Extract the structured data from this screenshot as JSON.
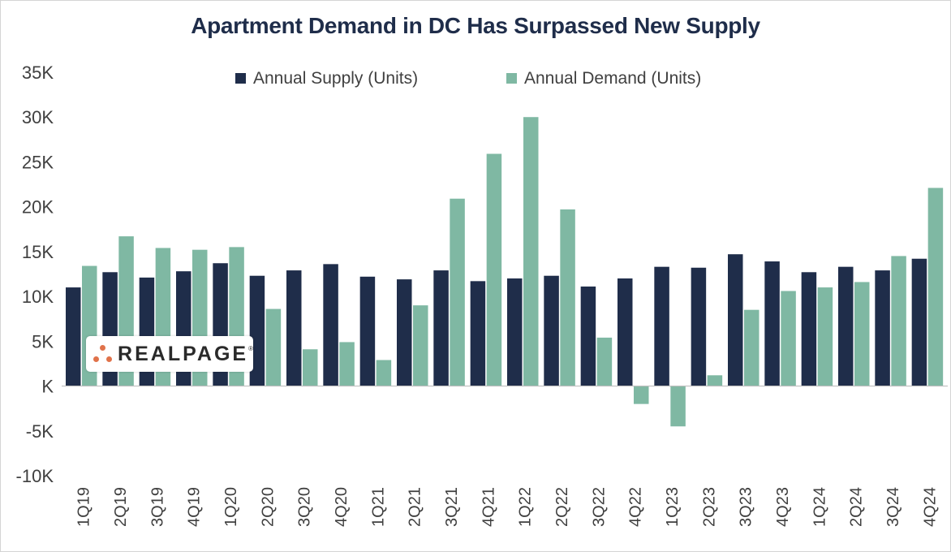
{
  "chart_data": {
    "type": "bar",
    "title": "Apartment Demand in DC Has Surpassed New Supply",
    "xlabel": "",
    "ylabel": "",
    "ylim": [
      -10000,
      35000
    ],
    "yticks": [
      35000,
      30000,
      25000,
      20000,
      15000,
      10000,
      5000,
      0,
      -5000,
      -10000
    ],
    "ytick_labels": [
      "35K",
      "30K",
      "25K",
      "20K",
      "15K",
      "10K",
      "5K",
      "K",
      "-5K",
      "-10K"
    ],
    "legend_position": "top-center",
    "grid": false,
    "categories": [
      "1Q19",
      "2Q19",
      "3Q19",
      "4Q19",
      "1Q20",
      "2Q20",
      "3Q20",
      "4Q20",
      "1Q21",
      "2Q21",
      "3Q21",
      "4Q21",
      "1Q22",
      "2Q22",
      "3Q22",
      "4Q22",
      "1Q23",
      "2Q23",
      "3Q23",
      "4Q23",
      "1Q24",
      "2Q24",
      "3Q24",
      "4Q24"
    ],
    "series": [
      {
        "name": "Annual Supply (Units)",
        "color": "#1f2d4a",
        "values": [
          11000,
          12700,
          12100,
          12800,
          13700,
          12300,
          12900,
          13600,
          12200,
          11900,
          12900,
          11700,
          12000,
          12300,
          11100,
          12000,
          13300,
          13200,
          14700,
          13900,
          12700,
          13300,
          12900,
          14200
        ]
      },
      {
        "name": "Annual Demand (Units)",
        "color": "#7fb8a3",
        "values": [
          13400,
          16700,
          15400,
          15200,
          15500,
          8600,
          4100,
          4900,
          2900,
          9000,
          20900,
          25900,
          30000,
          19700,
          5400,
          -2000,
          -4500,
          1200,
          8500,
          10600,
          11000,
          11600,
          14500,
          22100
        ]
      }
    ]
  },
  "logo": {
    "text": "REALPAGE",
    "tm": "®"
  }
}
